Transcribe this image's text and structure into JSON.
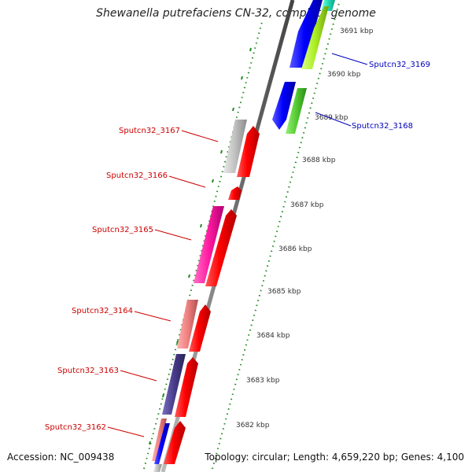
{
  "title": "Shewanella putrefaciens CN-32, complete genome",
  "accession": "Accession: NC_009438",
  "topology": "Topology: circular; Length: 4,659,220 bp; Genes: 4,100",
  "colors": {
    "forward_gene": "#ff0000",
    "reverse_gene": "#0000ff",
    "forward_label": "#cc0000",
    "reverse_label": "#0000bb",
    "backbone": "#888888",
    "ticks": "#228b22",
    "cog_gray": "#c0c0c0",
    "cog_magenta": "#ff1aa0",
    "cog_salmon": "#f08080",
    "cog_purple": "#483d8b",
    "cog_green": "#55cc33",
    "cog_yellowgreen": "#aaee22",
    "cog_cyan": "#22ddbb"
  },
  "scale_labels": [
    "3682 kbp",
    "3683 kbp",
    "3684 kbp",
    "3685 kbp",
    "3686 kbp",
    "3687 kbp",
    "3688 kbp",
    "3689 kbp",
    "3690 kbp",
    "3691 kbp"
  ],
  "gene_labels": {
    "g3169": "Sputcn32_3169",
    "g3168": "Sputcn32_3168",
    "g3167": "Sputcn32_3167",
    "g3166": "Sputcn32_3166",
    "g3165": "Sputcn32_3165",
    "g3164": "Sputcn32_3164",
    "g3163": "Sputcn32_3163",
    "g3162": "Sputcn32_3162"
  }
}
